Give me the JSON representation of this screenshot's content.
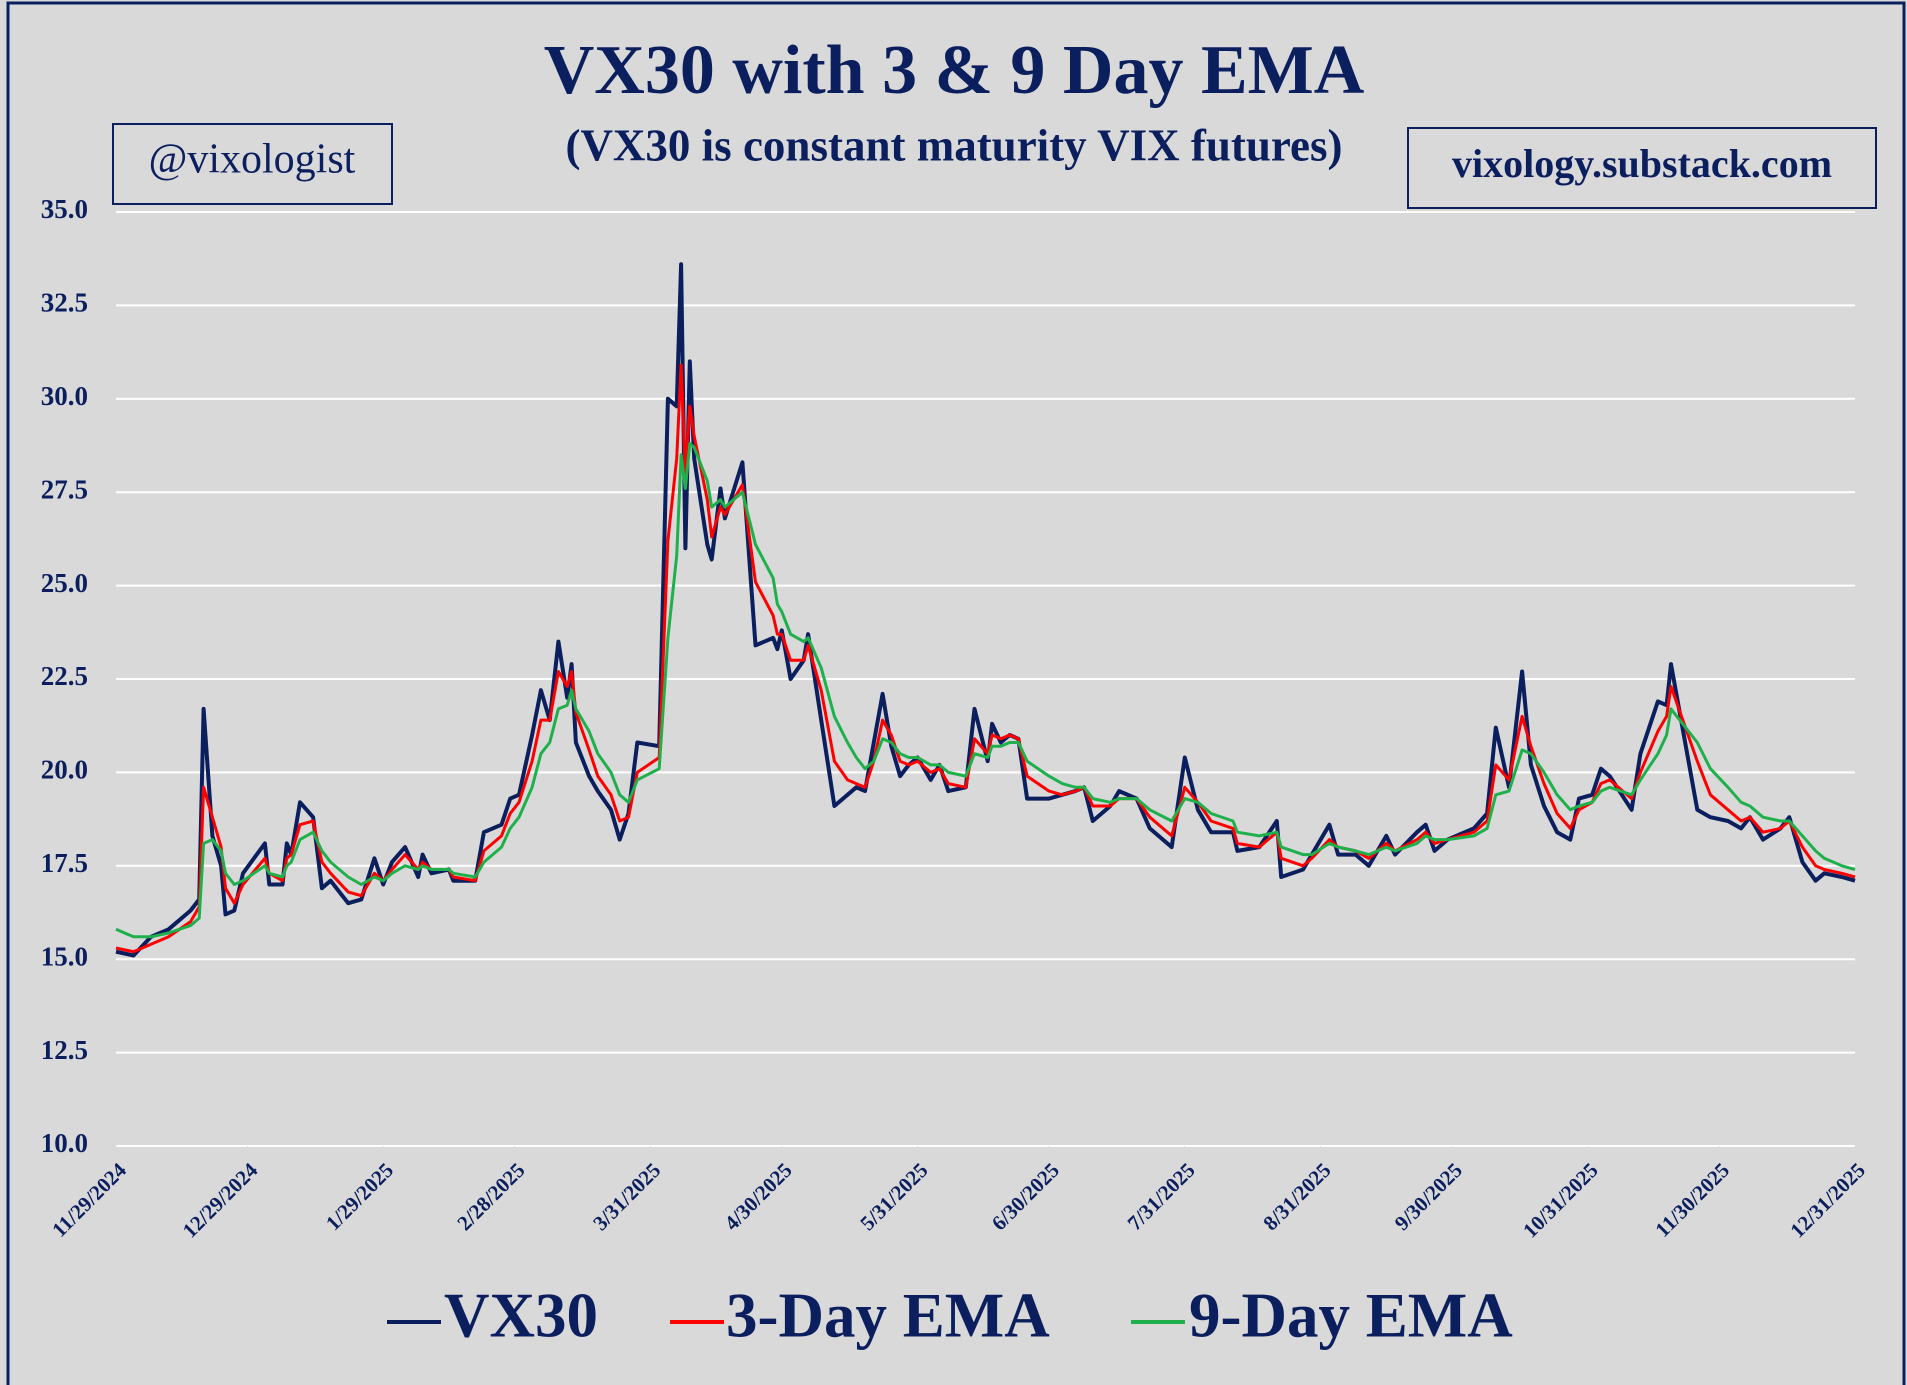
{
  "chart_data": {
    "type": "line",
    "title": "VX30 with 3 & 9 Day EMA",
    "subtitle": "(VX30 is constant maturity VIX futures)",
    "annotations": [
      "@vixologist",
      "vixology.substack.com"
    ],
    "x": [
      "11/29/2024",
      "12/3/2024",
      "12/7/2024",
      "12/11/2024",
      "12/16/2024",
      "12/18/2024",
      "12/19/2024",
      "12/21/2024",
      "12/23/2024",
      "12/24/2024",
      "12/26/2024",
      "12/28/2024",
      "1/2/2025",
      "1/3/2025",
      "1/6/2025",
      "1/7/2025",
      "1/8/2025",
      "1/10/2025",
      "1/13/2025",
      "1/15/2025",
      "1/17/2025",
      "1/21/2025",
      "1/24/2025",
      "1/27/2025",
      "1/29/2025",
      "1/31/2025",
      "2/3/2025",
      "2/6/2025",
      "2/7/2025",
      "2/9/2025",
      "2/13/2025",
      "2/14/2025",
      "2/19/2025",
      "2/21/2025",
      "2/25/2025",
      "2/27/2025",
      "3/1/2025",
      "3/4/2025",
      "3/6/2025",
      "3/8/2025",
      "3/10/2025",
      "3/12/2025",
      "3/13/2025",
      "3/14/2025",
      "3/17/2025",
      "3/19/2025",
      "3/22/2025",
      "3/24/2025",
      "3/26/2025",
      "3/28/2025",
      "4/2/2025",
      "4/4/2025",
      "4/6/2025",
      "4/7/2025",
      "4/8/2025",
      "4/9/2025",
      "4/10/2025",
      "4/13/2025",
      "4/14/2025",
      "4/16/2025",
      "4/17/2025",
      "4/21/2025",
      "4/24/2025",
      "4/28/2025",
      "4/29/2025",
      "4/30/2025",
      "5/2/2025",
      "5/5/2025",
      "5/6/2025",
      "5/9/2025",
      "5/12/2025",
      "5/15/2025",
      "5/17/2025",
      "5/19/2025",
      "5/21/2025",
      "5/23/2025",
      "5/25/2025",
      "5/27/2025",
      "5/29/2025",
      "5/31/2025",
      "6/3/2025",
      "6/5/2025",
      "6/7/2025",
      "6/11/2025",
      "6/13/2025",
      "6/16/2025",
      "6/17/2025",
      "6/19/2025",
      "6/21/2025",
      "6/23/2025",
      "6/25/2025",
      "6/30/2025",
      "7/3/2025",
      "7/6/2025",
      "7/8/2025",
      "7/10/2025",
      "7/14/2025",
      "7/16/2025",
      "7/20/2025",
      "7/23/2025",
      "7/28/2025",
      "7/31/2025",
      "8/3/2025",
      "8/6/2025",
      "8/11/2025",
      "8/12/2025",
      "8/17/2025",
      "8/21/2025",
      "8/22/2025",
      "8/27/2025",
      "8/29/2025",
      "9/2/2025",
      "9/4/2025",
      "9/8/2025",
      "9/11/2025",
      "9/15/2025",
      "9/17/2025",
      "9/22/2025",
      "9/24/2025",
      "9/26/2025",
      "9/29/2025",
      "10/5/2025",
      "10/8/2025",
      "10/10/2025",
      "10/13/2025",
      "10/16/2025",
      "10/18/2025",
      "10/21/2025",
      "10/24/2025",
      "10/27/2025",
      "10/29/2025",
      "11/1/2025",
      "11/3/2025",
      "11/5/2025",
      "11/10/2025",
      "11/12/2025",
      "11/16/2025",
      "11/18/2025",
      "11/19/2025",
      "11/25/2025",
      "11/28/2025",
      "12/2/2025",
      "12/5/2025",
      "12/7/2025",
      "12/10/2025",
      "12/14/2025",
      "12/16/2025",
      "12/19/2025",
      "12/22/2025",
      "12/24/2025",
      "12/28/2025",
      "12/31/2025"
    ],
    "series": [
      {
        "name": "VX30",
        "color": "#0b1f5e",
        "values": [
          15.2,
          15.1,
          15.6,
          15.8,
          16.3,
          16.6,
          21.7,
          18.3,
          17.5,
          16.2,
          16.3,
          17.3,
          18.1,
          17.0,
          17.0,
          18.1,
          17.8,
          19.2,
          18.8,
          16.9,
          17.1,
          16.5,
          16.6,
          17.7,
          17.0,
          17.6,
          18.0,
          17.2,
          17.8,
          17.3,
          17.4,
          17.1,
          17.1,
          18.4,
          18.6,
          19.3,
          19.4,
          21.0,
          22.2,
          21.4,
          23.5,
          22.0,
          22.9,
          20.8,
          19.9,
          19.5,
          19.0,
          18.2,
          18.9,
          20.8,
          20.7,
          30.0,
          29.8,
          33.6,
          26.0,
          31.0,
          28.4,
          26.1,
          25.7,
          27.6,
          26.8,
          28.3,
          23.4,
          23.6,
          23.3,
          23.8,
          22.5,
          23.0,
          23.7,
          21.4,
          19.1,
          19.4,
          19.6,
          19.5,
          20.8,
          22.1,
          20.7,
          19.9,
          20.2,
          20.4,
          19.8,
          20.2,
          19.5,
          19.6,
          21.7,
          20.3,
          21.3,
          20.8,
          21.0,
          20.9,
          19.3,
          19.3,
          19.4,
          19.5,
          19.6,
          18.7,
          19.1,
          19.5,
          19.3,
          18.5,
          18.0,
          20.4,
          19.0,
          18.4,
          18.4,
          17.9,
          18.0,
          18.7,
          17.2,
          17.4,
          17.8,
          18.6,
          17.8,
          17.8,
          17.5,
          18.3,
          17.8,
          18.4,
          18.6,
          17.9,
          18.2,
          18.5,
          18.9,
          21.2,
          19.6,
          22.7,
          20.2,
          19.1,
          18.4,
          18.2,
          19.3,
          19.4,
          20.1,
          19.9,
          19.0,
          20.5,
          21.9,
          21.8,
          22.9,
          19.0,
          18.8,
          18.7,
          18.5,
          18.8,
          18.2,
          18.5,
          18.8,
          17.6,
          17.1,
          17.3,
          17.2,
          17.1
        ]
      },
      {
        "name": "3-Day EMA",
        "color": "#ff0000",
        "values": [
          15.3,
          15.2,
          15.4,
          15.6,
          16.0,
          16.4,
          19.6,
          18.8,
          18.0,
          16.9,
          16.5,
          17.0,
          17.7,
          17.3,
          17.1,
          17.7,
          17.8,
          18.6,
          18.7,
          17.6,
          17.3,
          16.8,
          16.7,
          17.3,
          17.1,
          17.4,
          17.8,
          17.4,
          17.6,
          17.4,
          17.4,
          17.2,
          17.1,
          17.9,
          18.3,
          18.9,
          19.2,
          20.3,
          21.4,
          21.4,
          22.7,
          22.3,
          22.7,
          21.6,
          20.6,
          19.9,
          19.4,
          18.7,
          18.8,
          20.0,
          20.4,
          26.2,
          28.4,
          30.9,
          28.0,
          29.8,
          29.0,
          27.3,
          26.3,
          27.1,
          26.9,
          27.7,
          25.1,
          24.2,
          23.7,
          23.7,
          23.0,
          23.0,
          23.4,
          22.2,
          20.3,
          19.8,
          19.7,
          19.6,
          20.3,
          21.4,
          21.0,
          20.3,
          20.2,
          20.3,
          20.0,
          20.1,
          19.7,
          19.6,
          20.9,
          20.5,
          21.0,
          20.9,
          21.0,
          20.9,
          19.9,
          19.5,
          19.4,
          19.5,
          19.6,
          19.1,
          19.1,
          19.3,
          19.3,
          18.8,
          18.3,
          19.6,
          19.2,
          18.7,
          18.5,
          18.1,
          18.0,
          18.4,
          17.7,
          17.5,
          17.7,
          18.2,
          18.0,
          17.9,
          17.7,
          18.1,
          17.9,
          18.2,
          18.4,
          18.1,
          18.2,
          18.4,
          18.7,
          20.2,
          19.8,
          21.5,
          20.7,
          19.7,
          18.9,
          18.5,
          19.0,
          19.2,
          19.7,
          19.8,
          19.3,
          20.0,
          21.1,
          21.5,
          22.3,
          20.3,
          19.4,
          19.0,
          18.7,
          18.8,
          18.4,
          18.5,
          18.7,
          18.0,
          17.5,
          17.4,
          17.3,
          17.2
        ]
      },
      {
        "name": "9-Day EMA",
        "color": "#1fb04c",
        "values": [
          15.8,
          15.6,
          15.6,
          15.7,
          15.9,
          16.1,
          18.1,
          18.2,
          17.9,
          17.3,
          17.0,
          17.1,
          17.5,
          17.3,
          17.2,
          17.5,
          17.6,
          18.2,
          18.4,
          17.9,
          17.6,
          17.2,
          17.0,
          17.2,
          17.1,
          17.3,
          17.5,
          17.4,
          17.5,
          17.4,
          17.4,
          17.3,
          17.2,
          17.6,
          18.0,
          18.5,
          18.8,
          19.6,
          20.5,
          20.8,
          21.7,
          21.8,
          22.2,
          21.7,
          21.1,
          20.5,
          20.0,
          19.4,
          19.2,
          19.8,
          20.1,
          23.6,
          25.8,
          28.5,
          27.6,
          28.8,
          28.7,
          27.8,
          27.1,
          27.3,
          27.1,
          27.5,
          26.1,
          25.2,
          24.5,
          24.3,
          23.7,
          23.5,
          23.6,
          22.8,
          21.5,
          20.8,
          20.4,
          20.1,
          20.3,
          20.9,
          20.8,
          20.5,
          20.4,
          20.4,
          20.2,
          20.2,
          20.0,
          19.9,
          20.5,
          20.4,
          20.7,
          20.7,
          20.8,
          20.8,
          20.3,
          19.9,
          19.7,
          19.6,
          19.6,
          19.3,
          19.2,
          19.3,
          19.3,
          19.0,
          18.7,
          19.3,
          19.2,
          18.9,
          18.7,
          18.4,
          18.3,
          18.4,
          18.0,
          17.8,
          17.8,
          18.1,
          18.0,
          17.9,
          17.8,
          18.0,
          17.9,
          18.1,
          18.3,
          18.2,
          18.2,
          18.3,
          18.5,
          19.4,
          19.5,
          20.6,
          20.5,
          20.0,
          19.4,
          19.0,
          19.1,
          19.2,
          19.5,
          19.6,
          19.4,
          19.8,
          20.5,
          21.0,
          21.7,
          20.8,
          20.1,
          19.6,
          19.2,
          19.1,
          18.8,
          18.7,
          18.7,
          18.3,
          17.9,
          17.7,
          17.5,
          17.4
        ]
      }
    ],
    "xlim": [
      "11/29/2024",
      "12/31/2025"
    ],
    "xticks": [
      "11/29/2024",
      "12/29/2024",
      "1/29/2025",
      "2/28/2025",
      "3/31/2025",
      "4/30/2025",
      "5/31/2025",
      "6/30/2025",
      "7/31/2025",
      "8/31/2025",
      "9/30/2025",
      "10/31/2025",
      "11/30/2025",
      "12/31/2025"
    ],
    "ylim": [
      10,
      35
    ],
    "yticks": [
      {
        "value": 10,
        "label": "10.0"
      },
      12.5,
      {
        "value": 15,
        "label": "15.0"
      },
      17.5,
      {
        "value": 20,
        "label": "20.0"
      },
      22.5,
      {
        "value": 25,
        "label": "25.0"
      },
      27.5,
      {
        "value": 30,
        "label": "30.0"
      },
      32.5,
      {
        "value": 35,
        "label": "35.0"
      }
    ],
    "grid": true,
    "legend": "bottom"
  }
}
